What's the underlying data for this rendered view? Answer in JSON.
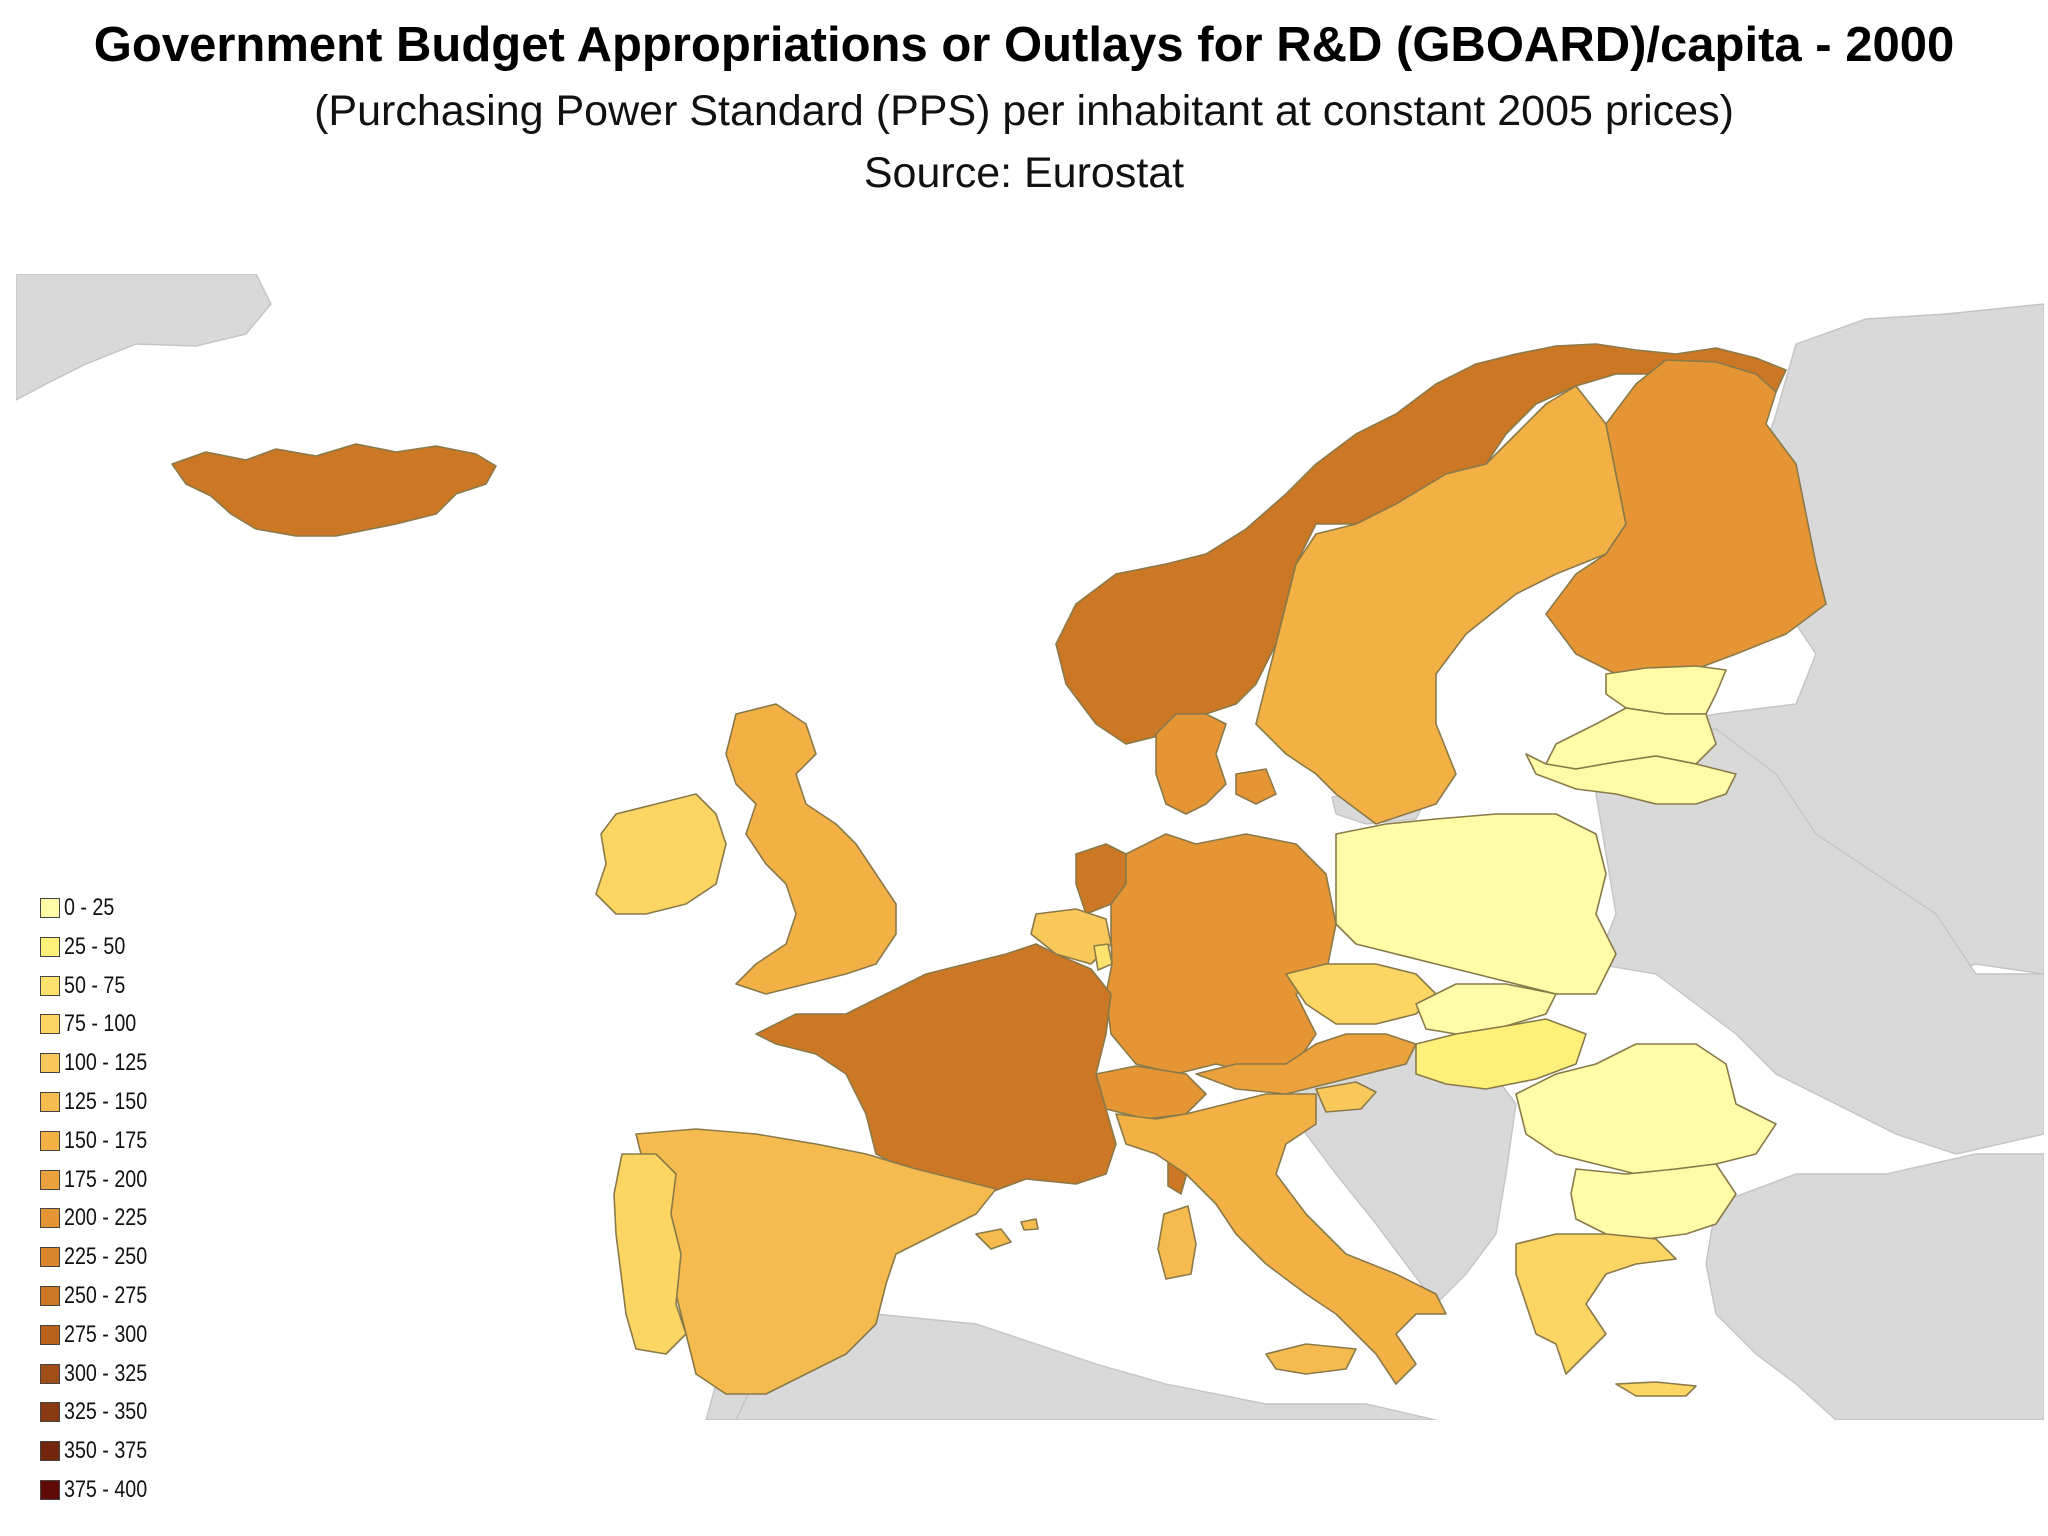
{
  "title": "Government Budget Appropriations or Outlays for R&D (GBOARD)/capita - 2000",
  "subtitle": "(Purchasing Power Standard (PPS) per inhabitant at constant 2005 prices)",
  "source": "Source: Eurostat",
  "legend": [
    {
      "label": "0 - 25",
      "color": "#fffba6"
    },
    {
      "label": "25 - 50",
      "color": "#fff07a"
    },
    {
      "label": "50 - 75",
      "color": "#fde36e"
    },
    {
      "label": "75 - 100",
      "color": "#fcd563"
    },
    {
      "label": "100 - 125",
      "color": "#f8c85a"
    },
    {
      "label": "125 - 150",
      "color": "#f5bb4f"
    },
    {
      "label": "150 - 175",
      "color": "#f2b045"
    },
    {
      "label": "175 - 200",
      "color": "#eca23c"
    },
    {
      "label": "200 - 225",
      "color": "#e59534"
    },
    {
      "label": "225 - 250",
      "color": "#d9852c"
    },
    {
      "label": "250 - 275",
      "color": "#cc7723"
    },
    {
      "label": "275 - 300",
      "color": "#b9621c"
    },
    {
      "label": "300 - 325",
      "color": "#a04d17"
    },
    {
      "label": "325 - 350",
      "color": "#8a3a12"
    },
    {
      "label": "350 - 375",
      "color": "#74250d"
    },
    {
      "label": "375 - 400",
      "color": "#600a06"
    }
  ],
  "regions": [
    {
      "name": "Iceland",
      "range": "250 - 275"
    },
    {
      "name": "Norway",
      "range": "250 - 275"
    },
    {
      "name": "Sweden",
      "range": "150 - 175"
    },
    {
      "name": "Finland",
      "range": "200 - 225"
    },
    {
      "name": "Denmark",
      "range": "200 - 225"
    },
    {
      "name": "Estonia",
      "range": "0 - 25"
    },
    {
      "name": "Latvia",
      "range": "0 - 25"
    },
    {
      "name": "Lithuania",
      "range": "0 - 25"
    },
    {
      "name": "Ireland",
      "range": "75 - 100"
    },
    {
      "name": "United Kingdom",
      "range": "150 - 175"
    },
    {
      "name": "Netherlands",
      "range": "250 - 275"
    },
    {
      "name": "Belgium",
      "range": "100 - 125"
    },
    {
      "name": "Luxembourg",
      "range": "50 - 75"
    },
    {
      "name": "Germany",
      "range": "200 - 225"
    },
    {
      "name": "France",
      "range": "250 - 275"
    },
    {
      "name": "Switzerland",
      "range": "200 - 225"
    },
    {
      "name": "Austria",
      "range": "175 - 200"
    },
    {
      "name": "Czech Republic",
      "range": "75 - 100"
    },
    {
      "name": "Poland",
      "range": "0 - 25"
    },
    {
      "name": "Slovakia",
      "range": "0 - 25"
    },
    {
      "name": "Hungary",
      "range": "25 - 50"
    },
    {
      "name": "Slovenia",
      "range": "100 - 125"
    },
    {
      "name": "Italy",
      "range": "150 - 175"
    },
    {
      "name": "Spain",
      "range": "125 - 150"
    },
    {
      "name": "Portugal",
      "range": "75 - 100"
    },
    {
      "name": "Romania",
      "range": "0 - 25"
    },
    {
      "name": "Bulgaria",
      "range": "0 - 25"
    },
    {
      "name": "Greece",
      "range": "75 - 100"
    },
    {
      "name": "Cyprus",
      "range": "25 - 50"
    }
  ]
}
